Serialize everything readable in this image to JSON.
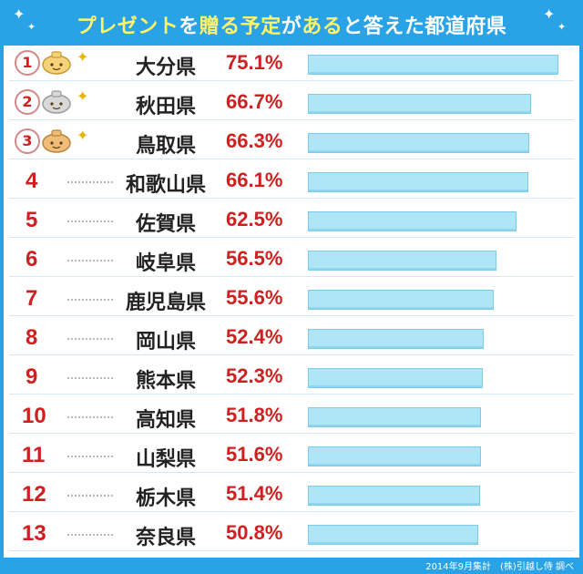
{
  "title": {
    "highlight": "プレゼント",
    "middle1": "を",
    "highlight2": "贈る予定",
    "middle2": "が",
    "highlight3": "ある",
    "rest": "と答えた都道府県"
  },
  "footer": "2014年9月集計　(株)引越し侍 調べ",
  "colors": {
    "frame": "#29a3e6",
    "percent": "#d01f1f",
    "bar": "#aee6f7",
    "highlight_text": "#fff36b"
  },
  "medals": [
    "gold-medal-icon",
    "silver-medal-icon",
    "bronze-medal-icon"
  ],
  "chart_data": {
    "type": "bar",
    "orientation": "horizontal",
    "categories": [
      "大分県",
      "秋田県",
      "鳥取県",
      "和歌山県",
      "佐賀県",
      "岐阜県",
      "鹿児島県",
      "岡山県",
      "熊本県",
      "高知県",
      "山梨県",
      "栃木県",
      "奈良県"
    ],
    "ranks": [
      "1",
      "2",
      "3",
      "4",
      "5",
      "6",
      "7",
      "8",
      "9",
      "10",
      "11",
      "12",
      "13"
    ],
    "values": [
      75.1,
      66.7,
      66.3,
      66.1,
      62.5,
      56.5,
      55.6,
      52.4,
      52.3,
      51.8,
      51.6,
      51.4,
      50.8
    ],
    "labels": [
      "75.1%",
      "66.7%",
      "66.3%",
      "66.1%",
      "62.5%",
      "56.5%",
      "55.6%",
      "52.4%",
      "52.3%",
      "51.8%",
      "51.6%",
      "51.4%",
      "50.8%"
    ],
    "xlim": [
      0,
      77
    ]
  }
}
